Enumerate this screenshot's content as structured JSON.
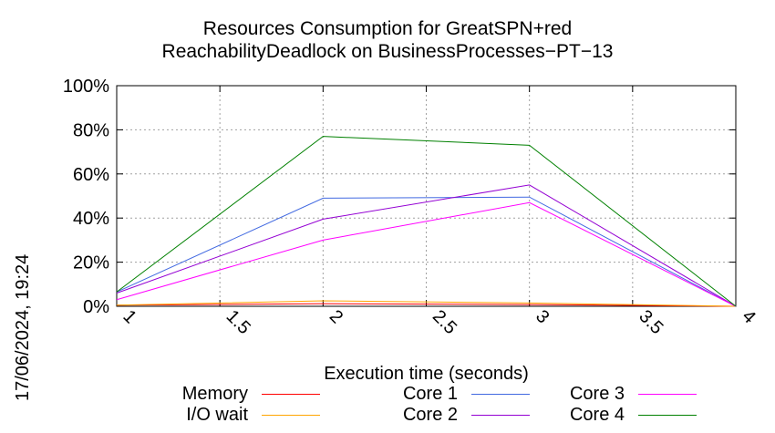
{
  "chart_data": {
    "type": "line",
    "title_lines": [
      "Resources Consumption for GreatSPN+red",
      "ReachabilityDeadlock on BusinessProcesses−PT−13"
    ],
    "xlabel": "Execution time (seconds)",
    "timestamp": "17/06/2024, 19:24",
    "xlim": [
      1,
      4
    ],
    "ylim": [
      0,
      100
    ],
    "xticks": [
      1,
      1.5,
      2,
      2.5,
      3,
      3.5,
      4
    ],
    "xtick_labels": [
      "1",
      "1.5",
      "2",
      "2.5",
      "3",
      "3.5",
      "4"
    ],
    "yticks": [
      0,
      20,
      40,
      60,
      80,
      100
    ],
    "ytick_labels": [
      "0%",
      "20%",
      "40%",
      "60%",
      "80%",
      "100%"
    ],
    "grid": true,
    "legend_position": "bottom",
    "x": [
      1,
      2,
      3,
      4
    ],
    "series": [
      {
        "name": "Memory",
        "color": "#ff0000",
        "values": [
          0.5,
          1.2,
          0.8,
          0
        ]
      },
      {
        "name": "I/O wait",
        "color": "#ffa500",
        "values": [
          0.5,
          2.5,
          1.5,
          0
        ]
      },
      {
        "name": "Core 1",
        "color": "#4169e1",
        "values": [
          6.5,
          49,
          49.5,
          0
        ]
      },
      {
        "name": "Core 2",
        "color": "#9400d3",
        "values": [
          6,
          39.5,
          55,
          0
        ]
      },
      {
        "name": "Core 3",
        "color": "#ff00ff",
        "values": [
          3,
          30,
          47,
          0
        ]
      },
      {
        "name": "Core 4",
        "color": "#008000",
        "values": [
          6.5,
          77,
          73,
          0
        ]
      }
    ]
  }
}
